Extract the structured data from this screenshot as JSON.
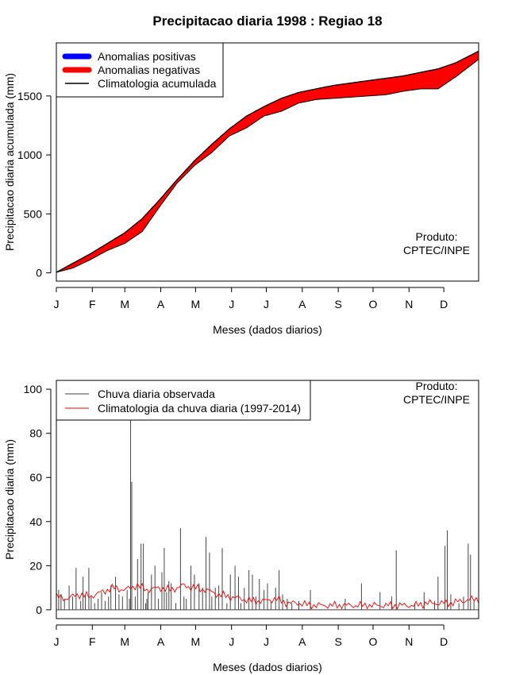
{
  "title": "Precipitacao diaria 1998 : Regiao 18",
  "colors": {
    "positive": "#0000ff",
    "negative": "#ff0000",
    "climatology": "#000000",
    "daily_obs": "#444444",
    "daily_clim": "#ff0000"
  },
  "chart_data": [
    {
      "type": "area",
      "name": "accumulated",
      "title": "Precipitacao diaria 1998 : Regiao 18",
      "xlabel": "Meses (dados diarios)",
      "ylabel": "Precipitacao diaria acumulada (mm)",
      "x_range": [
        1,
        365
      ],
      "ylim": [
        -70,
        1950
      ],
      "y_ticks": [
        0,
        500,
        1000,
        1500
      ],
      "x_tick_labels": [
        "J",
        "F",
        "M",
        "A",
        "M",
        "J",
        "J",
        "A",
        "S",
        "O",
        "N",
        "D"
      ],
      "x_tick_days": [
        1,
        32,
        60,
        91,
        121,
        152,
        182,
        213,
        244,
        274,
        305,
        335
      ],
      "legend_position": "top-left",
      "legend": [
        "Anomalias positivas",
        "Anomalias negativas",
        "Climatologia acumulada"
      ],
      "annotation": [
        "Produto:",
        "CPTEC/INPE"
      ],
      "days": [
        1,
        15,
        30,
        45,
        60,
        75,
        90,
        105,
        120,
        135,
        150,
        165,
        180,
        195,
        210,
        225,
        240,
        255,
        270,
        285,
        300,
        315,
        330,
        345,
        365
      ],
      "climatology": [
        5,
        80,
        160,
        250,
        340,
        460,
        620,
        790,
        950,
        1090,
        1220,
        1330,
        1410,
        1480,
        1530,
        1560,
        1590,
        1610,
        1630,
        1650,
        1670,
        1700,
        1730,
        1780,
        1880
      ],
      "observed": [
        5,
        40,
        110,
        190,
        250,
        350,
        560,
        760,
        910,
        1020,
        1160,
        1230,
        1330,
        1370,
        1440,
        1470,
        1480,
        1490,
        1500,
        1510,
        1540,
        1560,
        1560,
        1660,
        1810
      ]
    },
    {
      "type": "bar",
      "name": "daily",
      "xlabel": "Meses (dados diarios)",
      "ylabel": "Precipitacao diaria (mm)",
      "x_range": [
        1,
        365
      ],
      "ylim": [
        -4,
        104
      ],
      "y_ticks": [
        0,
        20,
        40,
        60,
        80,
        100
      ],
      "x_tick_labels": [
        "J",
        "F",
        "M",
        "A",
        "M",
        "J",
        "J",
        "A",
        "S",
        "O",
        "N",
        "D"
      ],
      "x_tick_days": [
        1,
        32,
        60,
        91,
        121,
        152,
        182,
        213,
        244,
        274,
        305,
        335
      ],
      "legend_position": "top-left",
      "legend": [
        "Chuva diaria observada",
        "Climatologia da chuva diaria (1997-2014)"
      ],
      "annotation": [
        "Produto:",
        "CPTEC/INPE"
      ],
      "observed_days": [
        3,
        5,
        8,
        12,
        15,
        18,
        22,
        24,
        26,
        29,
        31,
        34,
        37,
        40,
        43,
        46,
        48,
        52,
        55,
        58,
        62,
        64,
        65,
        66,
        69,
        71,
        74,
        76,
        78,
        79,
        80,
        83,
        86,
        89,
        92,
        94,
        96,
        98,
        100,
        104,
        108,
        111,
        113,
        117,
        120,
        124,
        127,
        130,
        133,
        135,
        138,
        141,
        144,
        148,
        151,
        155,
        158,
        160,
        163,
        167,
        170,
        173,
        176,
        180,
        183,
        186,
        190,
        193,
        196,
        200,
        204,
        210,
        220,
        250,
        264,
        280,
        290,
        294,
        310,
        318,
        327,
        330,
        336,
        338,
        341,
        348,
        352,
        356,
        358,
        361
      ],
      "observed_values": [
        9,
        7,
        5,
        11,
        6,
        19,
        4,
        15,
        7,
        19,
        6,
        3,
        5,
        8,
        4,
        6,
        11,
        15,
        7,
        6,
        9,
        5,
        88,
        58,
        6,
        23,
        30,
        30,
        3,
        5,
        8,
        16,
        20,
        5,
        17,
        28,
        8,
        13,
        12,
        3,
        37,
        6,
        5,
        20,
        16,
        12,
        10,
        33,
        26,
        6,
        10,
        11,
        28,
        3,
        16,
        20,
        15,
        3,
        10,
        18,
        16,
        6,
        14,
        9,
        12,
        4,
        10,
        18,
        7,
        5,
        3,
        4,
        9,
        5,
        12,
        8,
        6,
        27,
        3,
        8,
        4,
        15,
        29,
        36,
        7,
        3,
        6,
        30,
        25,
        4
      ],
      "climatology_days": [
        1,
        10,
        20,
        30,
        40,
        50,
        60,
        70,
        80,
        90,
        100,
        110,
        120,
        130,
        140,
        150,
        160,
        170,
        180,
        190,
        200,
        210,
        220,
        230,
        240,
        250,
        260,
        270,
        280,
        290,
        300,
        310,
        320,
        330,
        340,
        350,
        365
      ],
      "climatology_values": [
        6,
        5,
        7,
        6,
        8,
        10,
        9,
        11,
        9,
        10,
        9,
        11,
        10,
        9,
        7,
        6,
        5,
        4,
        4,
        5,
        3,
        3,
        2,
        2,
        2,
        2,
        2,
        2,
        2,
        2,
        2,
        2,
        3,
        3,
        3,
        4,
        5
      ]
    }
  ]
}
